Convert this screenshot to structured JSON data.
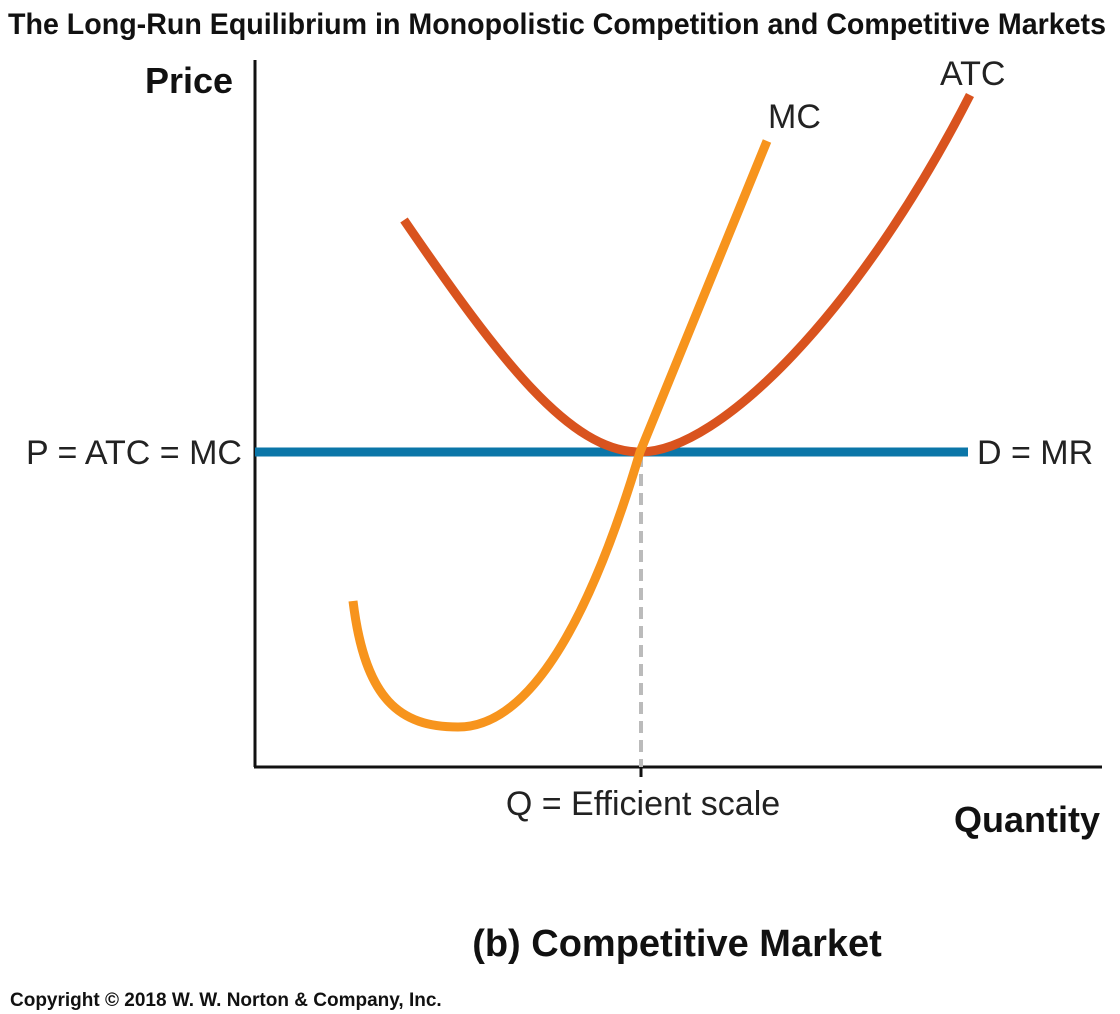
{
  "figure": {
    "title": "The Long-Run Equilibrium in Monopolistic Competition and Competitive Markets",
    "panel_label": "(b) Competitive Market",
    "copyright": "Copyright © 2018 W. W. Norton & Company, Inc."
  },
  "axes": {
    "y_label": "Price",
    "x_label": "Quantity"
  },
  "curves": {
    "mc": {
      "label": "MC",
      "color": "#F7941D"
    },
    "atc": {
      "label": "ATC",
      "color": "#D9531E"
    },
    "demand": {
      "label": "D = MR",
      "color": "#0B76A8"
    }
  },
  "equilibrium": {
    "price_label": "P = ATC = MC",
    "quantity_label": "Q = Efficient scale",
    "guide_color": "#BBBBBB"
  }
}
